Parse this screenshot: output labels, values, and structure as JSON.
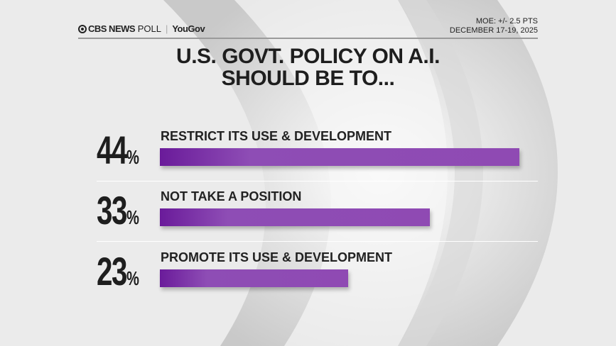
{
  "header": {
    "brand": "CBS NEWS",
    "brand_suffix": "POLL",
    "partner": "YouGov",
    "moe": "MOE: +/- 2.5 PTS",
    "dates": "DECEMBER 17-19, 2025"
  },
  "colors": {
    "bar": "#8e4db5",
    "bar_dark": "#6a1b9a",
    "text": "#1e1e1e"
  },
  "chart_data": {
    "type": "bar",
    "orientation": "horizontal",
    "title_lines": [
      "U.S. GOVT. POLICY ON A.I.",
      "SHOULD BE TO..."
    ],
    "categories": [
      "RESTRICT ITS USE & DEVELOPMENT",
      "NOT TAKE A POSITION",
      "PROMOTE ITS USE & DEVELOPMENT"
    ],
    "values": [
      44,
      33,
      23
    ],
    "value_labels": [
      "44",
      "33",
      "23"
    ],
    "unit": "%",
    "grid": false
  }
}
